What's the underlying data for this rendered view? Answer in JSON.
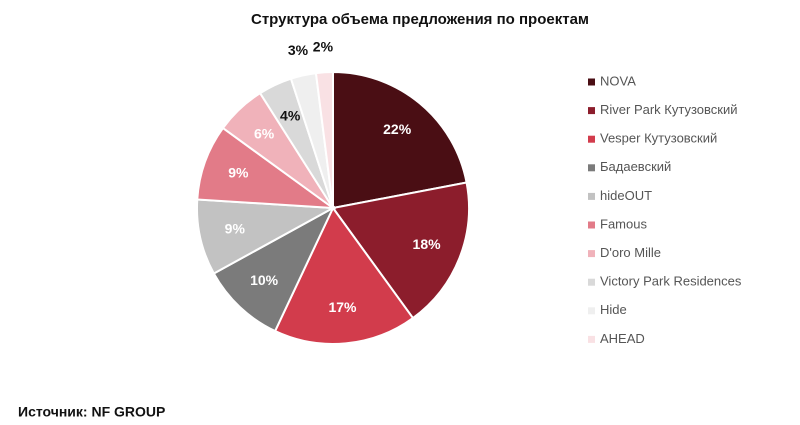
{
  "chart_data": {
    "type": "pie",
    "title": "Структура объема предложения по проектам",
    "categories": [
      "NOVA",
      "River Park Кутузовский",
      "Vesper Кутузовский",
      "Бадаевский",
      "hideOUT",
      "Famous",
      "D'oro Mille",
      "Victory Park Residences",
      "Hide",
      "AHEAD"
    ],
    "values": [
      22,
      18,
      17,
      10,
      9,
      9,
      6,
      4,
      3,
      2
    ],
    "value_labels": [
      "22%",
      "18%",
      "17%",
      "10%",
      "9%",
      "9%",
      "6%",
      "4%",
      "3%",
      "2%"
    ],
    "colors": [
      "#4a0e14",
      "#8c1d2c",
      "#d23c4c",
      "#7b7b7b",
      "#c2c2c2",
      "#e27b88",
      "#f0b2ba",
      "#d9d9d9",
      "#efefef",
      "#f9e1e4"
    ],
    "legend": "right"
  },
  "source": "Источник: NF GROUP"
}
